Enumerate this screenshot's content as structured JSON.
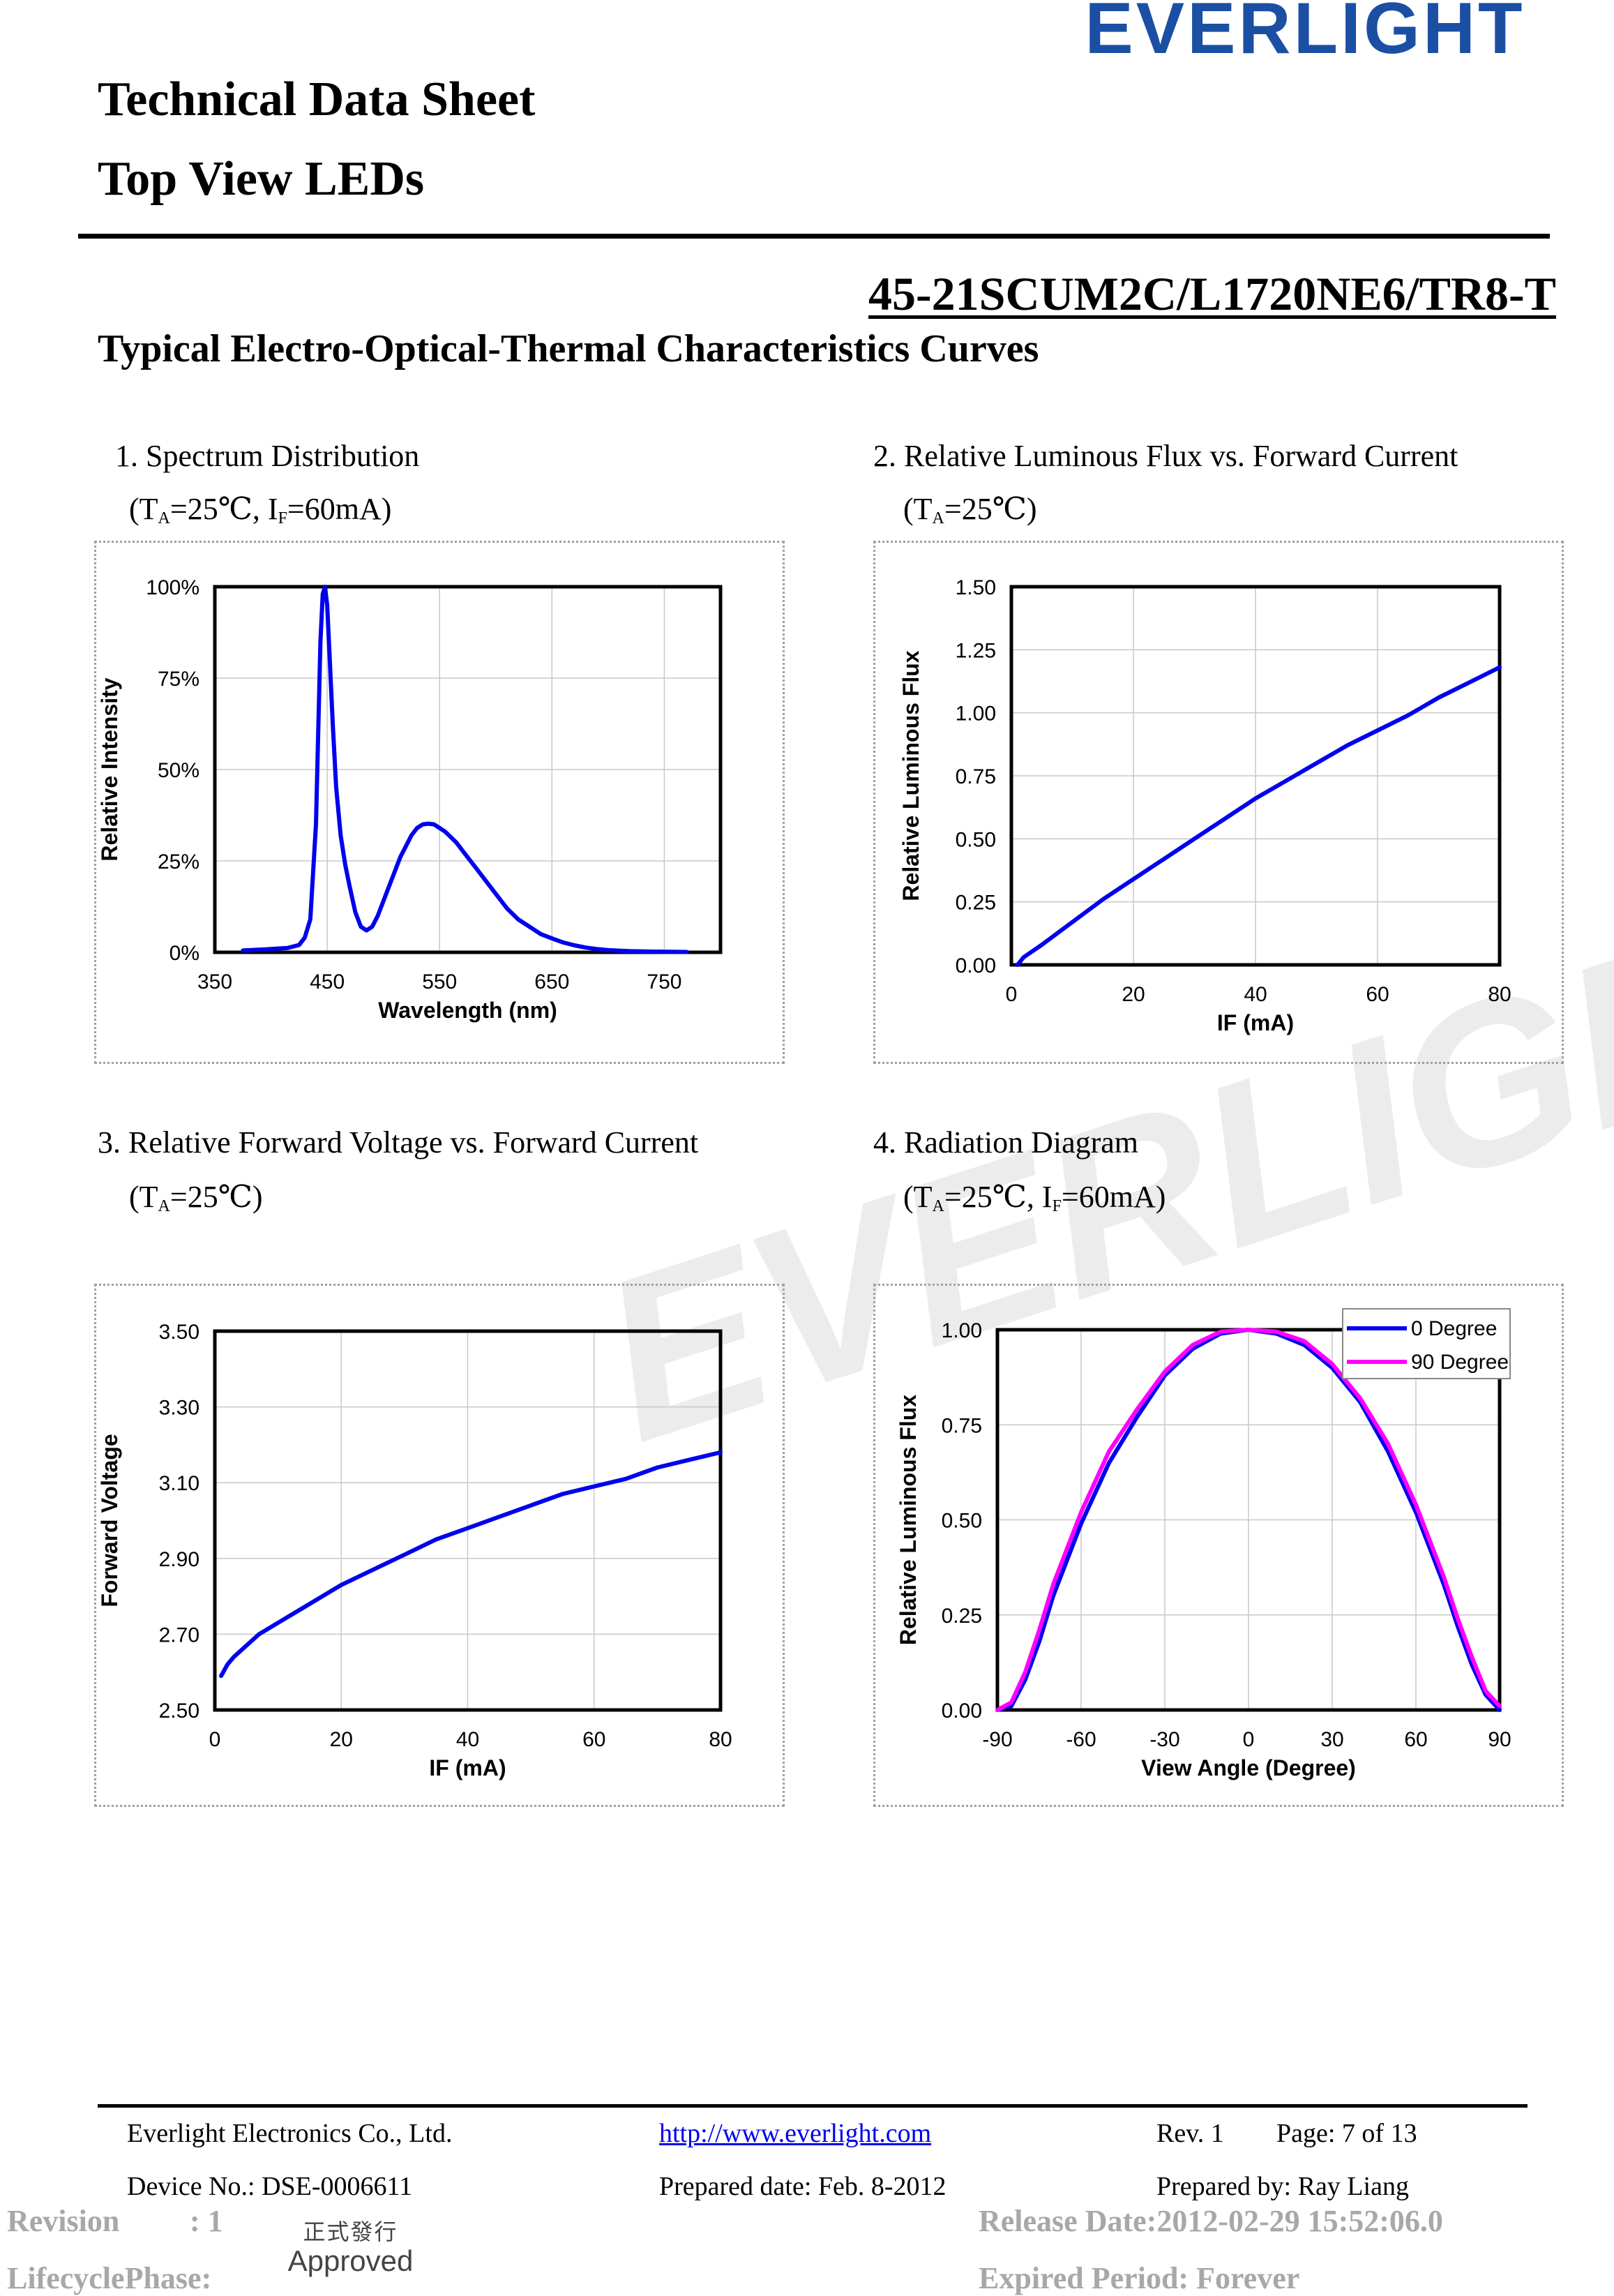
{
  "header": {
    "logo_text": "EVERLIGHT",
    "title_line1": "Technical Data Sheet",
    "title_line2": "Top View LEDs",
    "part_number": "45-21SCUM2C/L1720NE6/TR8-T",
    "section_title": "Typical Electro-Optical-Thermal Characteristics Curves"
  },
  "watermark_text": "EVERLIGHT",
  "captions": {
    "c1_title": "1. Spectrum Distribution",
    "c1_cond_a": "(T",
    "c1_cond_a_sub": "A",
    "c1_cond_b": "=25℃, I",
    "c1_cond_b_sub": "F",
    "c1_cond_c": "=60mA)",
    "c2_title": "2. Relative Luminous Flux vs. Forward Current",
    "c2_cond_a": "(T",
    "c2_cond_a_sub": "A",
    "c2_cond_b": "=25℃)",
    "c3_title": "3. Relative Forward Voltage vs. Forward Current",
    "c3_cond_a": "(T",
    "c3_cond_a_sub": "A",
    "c3_cond_b": "=25℃)",
    "c4_title": "4. Radiation Diagram",
    "c4_cond_a": "(T",
    "c4_cond_a_sub": "A",
    "c4_cond_b": "=25℃, I",
    "c4_cond_b_sub": "F",
    "c4_cond_c": "=60mA)"
  },
  "chart_data": [
    {
      "type": "line",
      "xlabel": "Wavelength (nm)",
      "ylabel": "Relative Intensity",
      "xlim": [
        350,
        800
      ],
      "ylim": [
        0,
        1
      ],
      "xticks": [
        350,
        450,
        550,
        650,
        750
      ],
      "yticks": [
        0,
        0.25,
        0.5,
        0.75,
        1.0
      ],
      "ytick_labels": [
        "0%",
        "25%",
        "50%",
        "75%",
        "100%"
      ],
      "xtick_labels": [
        "350",
        "450",
        "550",
        "650",
        "750"
      ],
      "grid": true,
      "color": "#0000ee",
      "x": [
        375,
        395,
        415,
        425,
        430,
        435,
        440,
        442,
        444,
        446,
        448,
        450,
        452,
        455,
        458,
        462,
        466,
        470,
        475,
        480,
        485,
        490,
        495,
        500,
        505,
        510,
        515,
        520,
        525,
        530,
        535,
        540,
        545,
        550,
        555,
        560,
        565,
        570,
        575,
        580,
        590,
        600,
        610,
        620,
        630,
        640,
        650,
        660,
        670,
        680,
        690,
        700,
        720,
        740,
        770
      ],
      "y": [
        0.005,
        0.008,
        0.012,
        0.02,
        0.04,
        0.09,
        0.35,
        0.6,
        0.85,
        0.98,
        1.0,
        0.95,
        0.82,
        0.62,
        0.45,
        0.32,
        0.24,
        0.18,
        0.11,
        0.07,
        0.06,
        0.07,
        0.1,
        0.14,
        0.18,
        0.22,
        0.26,
        0.29,
        0.32,
        0.34,
        0.35,
        0.352,
        0.35,
        0.34,
        0.33,
        0.315,
        0.3,
        0.28,
        0.26,
        0.24,
        0.2,
        0.16,
        0.12,
        0.09,
        0.07,
        0.05,
        0.038,
        0.027,
        0.019,
        0.013,
        0.009,
        0.006,
        0.003,
        0.002,
        0.001
      ]
    },
    {
      "type": "line",
      "xlabel": "IF (mA)",
      "ylabel": "Relative Luminous Flux",
      "xlim": [
        0,
        80
      ],
      "ylim": [
        0,
        1.5
      ],
      "xticks": [
        0,
        20,
        40,
        60,
        80
      ],
      "xtick_labels": [
        "0",
        "20",
        "40",
        "60",
        "80"
      ],
      "yticks": [
        0,
        0.25,
        0.5,
        0.75,
        1.0,
        1.25,
        1.5
      ],
      "ytick_labels": [
        "0.00",
        "0.25",
        "0.50",
        "0.75",
        "1.00",
        "1.25",
        "1.50"
      ],
      "grid": true,
      "color": "#0000ee",
      "x": [
        1,
        2,
        5,
        10,
        15,
        20,
        25,
        30,
        35,
        40,
        45,
        50,
        55,
        60,
        65,
        70,
        75,
        80
      ],
      "y": [
        0.0,
        0.03,
        0.08,
        0.17,
        0.26,
        0.34,
        0.42,
        0.5,
        0.58,
        0.66,
        0.73,
        0.8,
        0.87,
        0.93,
        0.99,
        1.06,
        1.12,
        1.18
      ]
    },
    {
      "type": "line",
      "xlabel": "IF (mA)",
      "ylabel": "Forward Voltage",
      "xlim": [
        0,
        80
      ],
      "ylim": [
        2.5,
        3.5
      ],
      "xticks": [
        0,
        20,
        40,
        60,
        80
      ],
      "xtick_labels": [
        "0",
        "20",
        "40",
        "60",
        "80"
      ],
      "yticks": [
        2.5,
        2.7,
        2.9,
        3.1,
        3.3,
        3.5
      ],
      "ytick_labels": [
        "2.50",
        "2.70",
        "2.90",
        "3.10",
        "3.30",
        "3.50"
      ],
      "grid": true,
      "color": "#0000ee",
      "x": [
        1,
        2,
        3,
        5,
        7,
        10,
        15,
        20,
        25,
        30,
        35,
        40,
        45,
        50,
        55,
        60,
        65,
        70,
        75,
        80
      ],
      "y": [
        2.59,
        2.62,
        2.64,
        2.67,
        2.7,
        2.73,
        2.78,
        2.83,
        2.87,
        2.91,
        2.95,
        2.98,
        3.01,
        3.04,
        3.07,
        3.09,
        3.11,
        3.14,
        3.16,
        3.18
      ]
    },
    {
      "type": "line",
      "xlabel": "View Angle (Degree)",
      "ylabel": "Relative Luminous Flux",
      "xlim": [
        -90,
        90
      ],
      "ylim": [
        0,
        1
      ],
      "xticks": [
        -90,
        -60,
        -30,
        0,
        30,
        60,
        90
      ],
      "xtick_labels": [
        "-90",
        "-60",
        "-30",
        "0",
        "30",
        "60",
        "90"
      ],
      "yticks": [
        0,
        0.25,
        0.5,
        0.75,
        1.0
      ],
      "ytick_labels": [
        "0.00",
        "0.25",
        "0.50",
        "0.75",
        "1.00"
      ],
      "grid": true,
      "legend_position": "top-right",
      "x": [
        -90,
        -85,
        -80,
        -75,
        -70,
        -60,
        -50,
        -40,
        -30,
        -20,
        -10,
        0,
        10,
        20,
        30,
        40,
        50,
        60,
        70,
        75,
        80,
        85,
        90
      ],
      "series": [
        {
          "name": "0 Degree",
          "color": "#0000ee",
          "values": [
            0.0,
            0.01,
            0.08,
            0.18,
            0.3,
            0.49,
            0.65,
            0.77,
            0.88,
            0.95,
            0.99,
            1.0,
            0.99,
            0.96,
            0.9,
            0.81,
            0.68,
            0.52,
            0.33,
            0.22,
            0.12,
            0.04,
            0.0
          ]
        },
        {
          "name": "90 Degree",
          "color": "#ff00ff",
          "values": [
            0.0,
            0.02,
            0.1,
            0.21,
            0.33,
            0.52,
            0.68,
            0.79,
            0.89,
            0.96,
            0.995,
            1.0,
            0.995,
            0.97,
            0.91,
            0.82,
            0.7,
            0.54,
            0.35,
            0.24,
            0.14,
            0.05,
            0.01
          ]
        }
      ]
    }
  ],
  "footer": {
    "company": "Everlight Electronics Co., Ltd.",
    "url": "http://www.everlight.com",
    "rev": "Rev. 1",
    "page": "Page: 7 of 13",
    "device_no": "Device No.: DSE-0006611",
    "prepared_date": "Prepared date: Feb. 8-2012",
    "prepared_by": "Prepared by: Ray Liang"
  },
  "meta": {
    "revision_label": "Revision",
    "revision_value": ": 1",
    "release_date": "Release Date:2012-02-29 15:52:06.0",
    "lifecycle_label": "LifecyclePhase:",
    "stamp_zh": "正式發行",
    "stamp_en": "Approved",
    "expired": "Expired Period: Forever"
  }
}
